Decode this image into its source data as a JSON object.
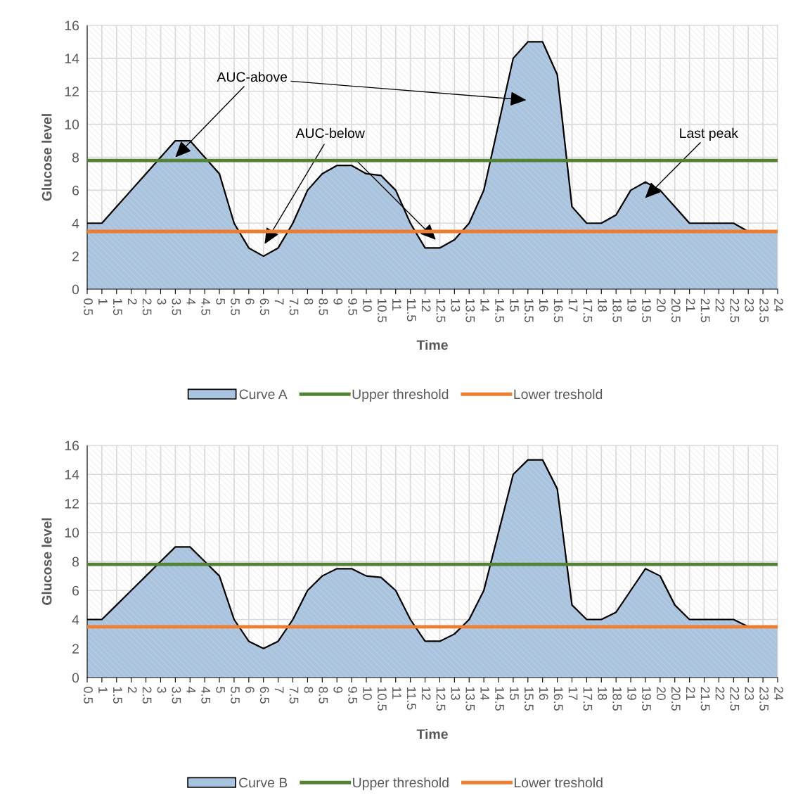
{
  "chart_data": [
    {
      "type": "area",
      "xlabel": "Time",
      "ylabel": "Glucose level",
      "categories": [
        "0.5",
        "1",
        "1.5",
        "2",
        "2.5",
        "3",
        "3.5",
        "4",
        "4.5",
        "5",
        "5.5",
        "6",
        "6.5",
        "7",
        "7.5",
        "8",
        "8.5",
        "9",
        "9.5",
        "10",
        "10.5",
        "11",
        "11.5",
        "12",
        "12.5",
        "13",
        "13.5",
        "14",
        "14.5",
        "15",
        "15.5",
        "16",
        "16.5",
        "17",
        "17.5",
        "18",
        "18.5",
        "19",
        "19.5",
        "20",
        "20.5",
        "21",
        "21.5",
        "22",
        "22.5",
        "23",
        "23.5",
        "24"
      ],
      "series": [
        {
          "name": "Curve A",
          "color": "#a9c4e0",
          "values": [
            4,
            4,
            5,
            6,
            7,
            8,
            9,
            9,
            8,
            7,
            4,
            2.5,
            2,
            2.5,
            4,
            6,
            7,
            7.5,
            7.5,
            7,
            6.9,
            6,
            4,
            2.5,
            2.5,
            3,
            4,
            6,
            10,
            14,
            15,
            15,
            13,
            5,
            4,
            4,
            4.5,
            6,
            6.5,
            6,
            5,
            4,
            4,
            4,
            4,
            3.5,
            3.5,
            3.5
          ]
        },
        {
          "name": "Upper threshold",
          "type": "line",
          "color": "#548235",
          "values": [
            7.8,
            7.8,
            7.8,
            7.8,
            7.8,
            7.8,
            7.8,
            7.8,
            7.8,
            7.8,
            7.8,
            7.8,
            7.8,
            7.8,
            7.8,
            7.8,
            7.8,
            7.8,
            7.8,
            7.8,
            7.8,
            7.8,
            7.8,
            7.8,
            7.8,
            7.8,
            7.8,
            7.8,
            7.8,
            7.8,
            7.8,
            7.8,
            7.8,
            7.8,
            7.8,
            7.8,
            7.8,
            7.8,
            7.8,
            7.8,
            7.8,
            7.8,
            7.8,
            7.8,
            7.8,
            7.8,
            7.8,
            7.8
          ]
        },
        {
          "name": "Lower treshold",
          "type": "line",
          "color": "#ed7d31",
          "values": [
            3.5,
            3.5,
            3.5,
            3.5,
            3.5,
            3.5,
            3.5,
            3.5,
            3.5,
            3.5,
            3.5,
            3.5,
            3.5,
            3.5,
            3.5,
            3.5,
            3.5,
            3.5,
            3.5,
            3.5,
            3.5,
            3.5,
            3.5,
            3.5,
            3.5,
            3.5,
            3.5,
            3.5,
            3.5,
            3.5,
            3.5,
            3.5,
            3.5,
            3.5,
            3.5,
            3.5,
            3.5,
            3.5,
            3.5,
            3.5,
            3.5,
            3.5,
            3.5,
            3.5,
            3.5,
            3.5,
            3.5,
            3.5
          ]
        }
      ],
      "ylim": [
        0,
        16
      ],
      "yticks": [
        0,
        2,
        4,
        6,
        8,
        10,
        12,
        14,
        16
      ],
      "grid": true,
      "legend": "bottom",
      "annotations": [
        {
          "text": "AUC-above",
          "x": "3.5",
          "y": 8
        },
        "AUC-below",
        "Last peak"
      ]
    },
    {
      "type": "area",
      "xlabel": "Time",
      "ylabel": "Glucose level",
      "categories": [
        "0.5",
        "1",
        "1.5",
        "2",
        "2.5",
        "3",
        "3.5",
        "4",
        "4.5",
        "5",
        "5.5",
        "6",
        "6.5",
        "7",
        "7.5",
        "8",
        "8.5",
        "9",
        "9.5",
        "10",
        "10.5",
        "11",
        "11.5",
        "12",
        "12.5",
        "13",
        "13.5",
        "14",
        "14.5",
        "15",
        "15.5",
        "16",
        "16.5",
        "17",
        "17.5",
        "18",
        "18.5",
        "19",
        "19.5",
        "20",
        "20.5",
        "21",
        "21.5",
        "22",
        "22.5",
        "23",
        "23.5",
        "24"
      ],
      "series": [
        {
          "name": "Curve B",
          "color": "#a9c4e0",
          "values": [
            4,
            4,
            5,
            6,
            7,
            8,
            9,
            9,
            8,
            7,
            4,
            2.5,
            2,
            2.5,
            4,
            6,
            7,
            7.5,
            7.5,
            7,
            6.9,
            6,
            4,
            2.5,
            2.5,
            3,
            4,
            6,
            10,
            14,
            15,
            15,
            13,
            5,
            4,
            4,
            4.5,
            6,
            7.5,
            7,
            5,
            4,
            4,
            4,
            4,
            3.5,
            3.5,
            3.5
          ]
        },
        {
          "name": "Upper threshold",
          "type": "line",
          "color": "#548235",
          "values": [
            7.8,
            7.8,
            7.8,
            7.8,
            7.8,
            7.8,
            7.8,
            7.8,
            7.8,
            7.8,
            7.8,
            7.8,
            7.8,
            7.8,
            7.8,
            7.8,
            7.8,
            7.8,
            7.8,
            7.8,
            7.8,
            7.8,
            7.8,
            7.8,
            7.8,
            7.8,
            7.8,
            7.8,
            7.8,
            7.8,
            7.8,
            7.8,
            7.8,
            7.8,
            7.8,
            7.8,
            7.8,
            7.8,
            7.8,
            7.8,
            7.8,
            7.8,
            7.8,
            7.8,
            7.8,
            7.8,
            7.8,
            7.8
          ]
        },
        {
          "name": "Lower treshold",
          "type": "line",
          "color": "#ed7d31",
          "values": [
            3.5,
            3.5,
            3.5,
            3.5,
            3.5,
            3.5,
            3.5,
            3.5,
            3.5,
            3.5,
            3.5,
            3.5,
            3.5,
            3.5,
            3.5,
            3.5,
            3.5,
            3.5,
            3.5,
            3.5,
            3.5,
            3.5,
            3.5,
            3.5,
            3.5,
            3.5,
            3.5,
            3.5,
            3.5,
            3.5,
            3.5,
            3.5,
            3.5,
            3.5,
            3.5,
            3.5,
            3.5,
            3.5,
            3.5,
            3.5,
            3.5,
            3.5,
            3.5,
            3.5,
            3.5,
            3.5,
            3.5,
            3.5
          ]
        }
      ],
      "ylim": [
        0,
        16
      ],
      "yticks": [
        0,
        2,
        4,
        6,
        8,
        10,
        12,
        14,
        16
      ],
      "grid": true,
      "legend": "bottom"
    }
  ]
}
